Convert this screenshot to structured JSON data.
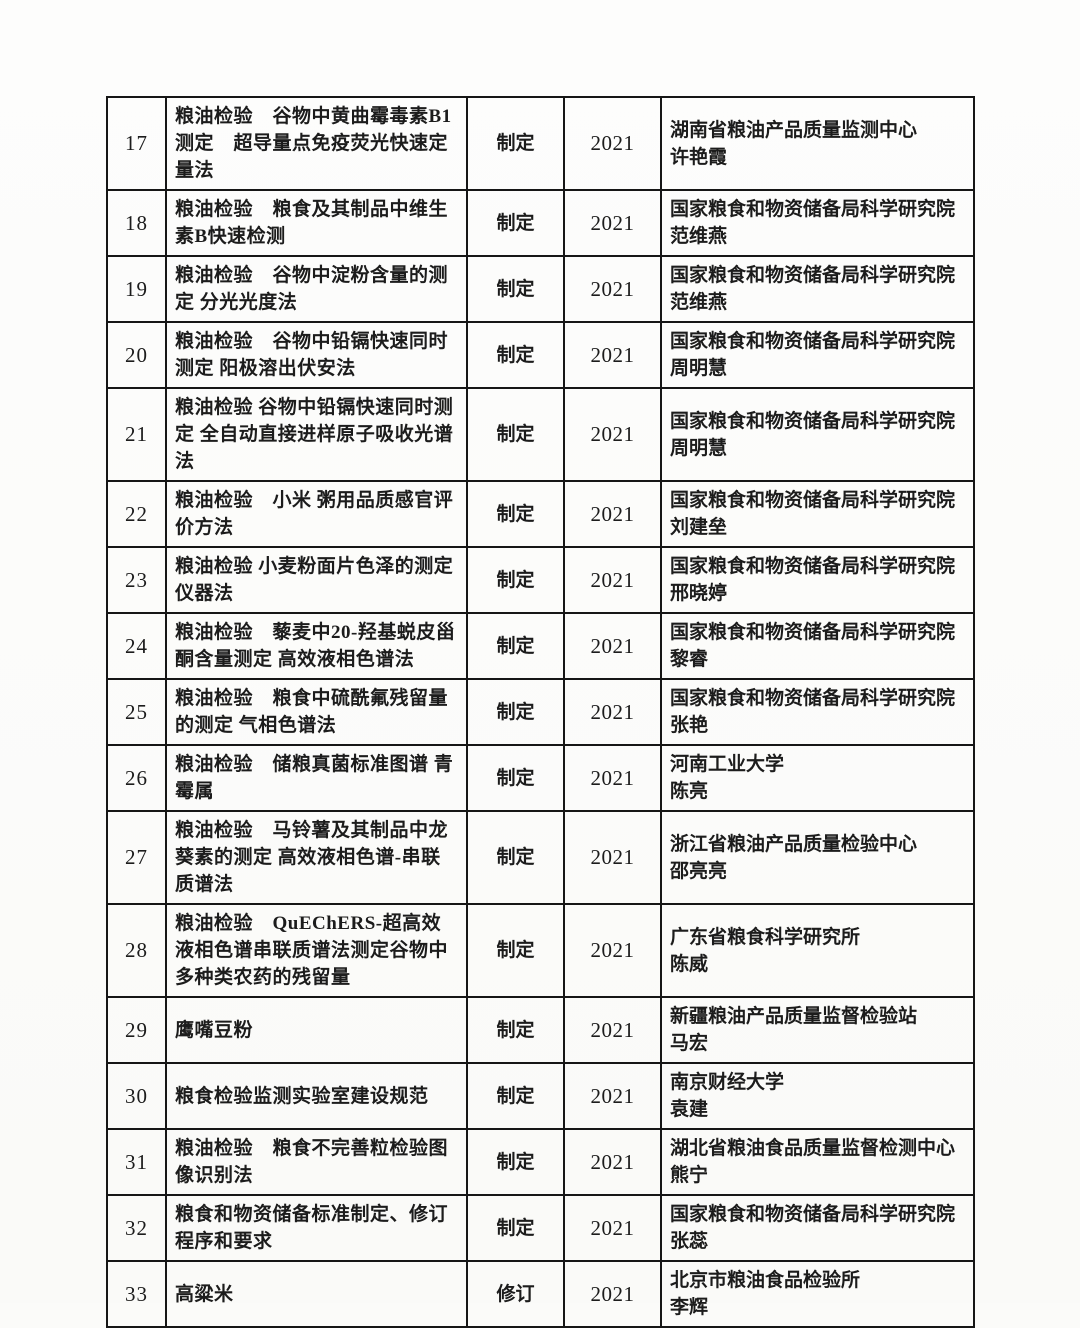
{
  "colors": {
    "paper": "#fbfbf9",
    "ink": "#1c1c1c",
    "grid": "#161616"
  },
  "table": {
    "description": "standards-plan-table-continuation-rows-17-33",
    "rows": [
      {
        "seq": "17",
        "name": "粮油检验　谷物中黄曲霉毒素B1测定　超导量点免疫荧光快速定量法",
        "type": "制定",
        "year": "2021",
        "org": "湖南省粮油产品质量监测中心",
        "person": "许艳霞"
      },
      {
        "seq": "18",
        "name": "粮油检验　粮食及其制品中维生素B快速检测",
        "type": "制定",
        "year": "2021",
        "org": "国家粮食和物资储备局科学研究院",
        "person": "范维燕"
      },
      {
        "seq": "19",
        "name": "粮油检验　谷物中淀粉含量的测定 分光光度法",
        "type": "制定",
        "year": "2021",
        "org": "国家粮食和物资储备局科学研究院",
        "person": "范维燕"
      },
      {
        "seq": "20",
        "name": "粮油检验　谷物中铅镉快速同时测定 阳极溶出伏安法",
        "type": "制定",
        "year": "2021",
        "org": "国家粮食和物资储备局科学研究院",
        "person": "周明慧"
      },
      {
        "seq": "21",
        "name": "粮油检验 谷物中铅镉快速同时测定 全自动直接进样原子吸收光谱法",
        "type": "制定",
        "year": "2021",
        "org": "国家粮食和物资储备局科学研究院",
        "person": "周明慧"
      },
      {
        "seq": "22",
        "name": "粮油检验　小米 粥用品质感官评价方法",
        "type": "制定",
        "year": "2021",
        "org": "国家粮食和物资储备局科学研究院",
        "person": "刘建垒"
      },
      {
        "seq": "23",
        "name": "粮油检验 小麦粉面片色泽的测定 仪器法",
        "type": "制定",
        "year": "2021",
        "org": "国家粮食和物资储备局科学研究院",
        "person": "邢晓婷"
      },
      {
        "seq": "24",
        "name": "粮油检验　藜麦中20-羟基蜕皮甾酮含量测定 高效液相色谱法",
        "type": "制定",
        "year": "2021",
        "org": "国家粮食和物资储备局科学研究院",
        "person": "黎睿"
      },
      {
        "seq": "25",
        "name": "粮油检验　粮食中硫酰氟残留量的测定 气相色谱法",
        "type": "制定",
        "year": "2021",
        "org": "国家粮食和物资储备局科学研究院",
        "person": "张艳"
      },
      {
        "seq": "26",
        "name": "粮油检验　储粮真菌标准图谱 青霉属",
        "type": "制定",
        "year": "2021",
        "org": "河南工业大学",
        "person": "陈亮"
      },
      {
        "seq": "27",
        "name": "粮油检验　马铃薯及其制品中龙葵素的测定 高效液相色谱-串联质谱法",
        "type": "制定",
        "year": "2021",
        "org": "浙江省粮油产品质量检验中心",
        "person": "邵亮亮"
      },
      {
        "seq": "28",
        "name": "粮油检验　QuEChERS-超高效液相色谱串联质谱法测定谷物中多种类农药的残留量",
        "type": "制定",
        "year": "2021",
        "org": "广东省粮食科学研究所",
        "person": "陈威"
      },
      {
        "seq": "29",
        "name": "鹰嘴豆粉",
        "type": "制定",
        "year": "2021",
        "org": "新疆粮油产品质量监督检验站",
        "person": "马宏"
      },
      {
        "seq": "30",
        "name": "粮食检验监测实验室建设规范",
        "type": "制定",
        "year": "2021",
        "org": "南京财经大学",
        "person": "袁建"
      },
      {
        "seq": "31",
        "name": "粮油检验　粮食不完善粒检验图像识别法",
        "type": "制定",
        "year": "2021",
        "org": "湖北省粮油食品质量监督检测中心",
        "person": "熊宁"
      },
      {
        "seq": "32",
        "name": "粮食和物资储备标准制定、修订程序和要求",
        "type": "制定",
        "year": "2021",
        "org": "国家粮食和物资储备局科学研究院",
        "person": "张蕊"
      },
      {
        "seq": "33",
        "name": "高粱米",
        "type": "修订",
        "year": "2021",
        "org": "北京市粮油食品检验所",
        "person": "李辉"
      }
    ]
  }
}
